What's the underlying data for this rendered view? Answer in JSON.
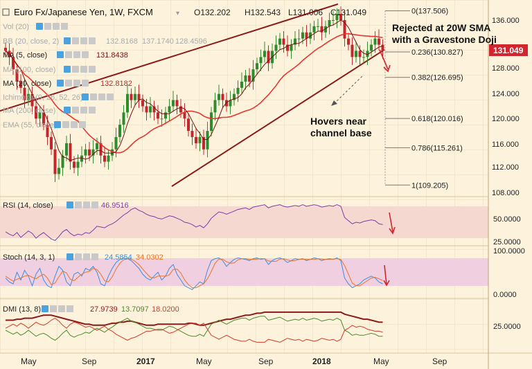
{
  "header": {
    "title": "Euro Fx/Japanese Yen, 1W, FXCM",
    "ohlc": [
      "O132.202",
      "H132.543",
      "L131.006",
      "C131.049"
    ]
  },
  "indicators": {
    "vol": "Vol (20)",
    "bb": {
      "label": "BB (20, close, 2)",
      "values": [
        "132.8168",
        "137.1740",
        "128.4596"
      ]
    },
    "ma5": {
      "label": "MA (5, close)",
      "value": "131.8438"
    },
    "ma100": "MA (100, close)",
    "ma20": {
      "label": "MA (20, close)",
      "value": "132.8182"
    },
    "ichimoku": "Ichimoku (9, 26, 52, 26)",
    "ma200": "MA (200, close)",
    "ema55": "EMA (55, close)"
  },
  "annotations": {
    "rejected_line1": "Rejected at 20W SMA",
    "rejected_line2": "with a Gravestone Doji",
    "hovers_line1": "Hovers near",
    "hovers_line2": "channel base",
    "price_tag": "131.049"
  },
  "fib_levels": [
    {
      "label": "0(137.506)",
      "value": 137.506
    },
    {
      "label": "0.236(130.827)",
      "value": 130.827
    },
    {
      "label": "0.382(126.695)",
      "value": 126.695
    },
    {
      "label": "0.618(120.016)",
      "value": 120.016
    },
    {
      "label": "0.786(115.261)",
      "value": 115.261
    },
    {
      "label": "1(109.205)",
      "value": 109.205
    }
  ],
  "price_axis": {
    "ticks": [
      "136.000",
      "132.000",
      "128.000",
      "124.000",
      "120.000",
      "116.000",
      "112.000",
      "108.000"
    ]
  },
  "x_axis": {
    "labels": [
      "May",
      "Sep",
      "2017",
      "May",
      "Sep",
      "2018",
      "May",
      "Sep"
    ]
  },
  "rsi": {
    "label": "RSI (14, close)",
    "value": "46.9516",
    "ticks": [
      "50.0000",
      "25.0000"
    ]
  },
  "stoch": {
    "label": "Stoch (14, 3, 1)",
    "k": "24.5854",
    "d": "34.0302",
    "ticks": [
      "100.0000",
      "0.0000"
    ]
  },
  "dmi": {
    "label": "DMI (13, 8)",
    "values": [
      "27.9739",
      "13.7097",
      "18.0200"
    ],
    "ticks": [
      "25.0000"
    ]
  },
  "chart_data": {
    "type": "candlestick",
    "title": "Euro Fx/Japanese Yen, 1W, FXCM",
    "y_range": [
      108,
      138
    ],
    "colors": {
      "up": "#2e8b2e",
      "down": "#c0282d",
      "sma20": "#e8352f",
      "sma5": "#7a1010",
      "channel": "#8b1a1a",
      "rsi": "#7b3aa7",
      "stoch_k": "#3b8ee0",
      "stoch_d": "#e8752a",
      "dmi_adx": "#8b1a1a",
      "dmi_plus": "#4a8a2a",
      "dmi_minus": "#d23b2b"
    },
    "channel_upper": [
      [
        0,
        121.0
      ],
      [
        125,
        138.6
      ]
    ],
    "channel_lower": [
      [
        71,
        109.0
      ],
      [
        150,
        131.2
      ]
    ],
    "closes": [
      131,
      130,
      128,
      126,
      125,
      123,
      124,
      122,
      120,
      121,
      119,
      117,
      115,
      111,
      112,
      114,
      116,
      113,
      112,
      113,
      114,
      115,
      114,
      115,
      116,
      114,
      113,
      114,
      115,
      117,
      119,
      121,
      124,
      123,
      124,
      123,
      122,
      121,
      122,
      121,
      120,
      120,
      121,
      122,
      123,
      122,
      121,
      120,
      118,
      117,
      116,
      117,
      115,
      118,
      121,
      123,
      124,
      123,
      122,
      123,
      124,
      125,
      126,
      127,
      126,
      128,
      129,
      130,
      131,
      129,
      131,
      132,
      133,
      132,
      131,
      132,
      133,
      133,
      134,
      133,
      134,
      135,
      135,
      134,
      135,
      136,
      136,
      137,
      136,
      133,
      132,
      130,
      131,
      130,
      130,
      131,
      132,
      133,
      132,
      131
    ],
    "rsi_values": [
      38,
      35,
      33,
      37,
      31,
      35,
      39,
      36,
      30,
      34,
      37,
      33,
      29,
      27,
      32,
      38,
      41,
      36,
      33,
      35,
      34,
      37,
      36,
      40,
      45,
      44,
      43,
      46,
      48,
      51,
      55,
      59,
      62,
      66,
      68,
      65,
      63,
      60,
      58,
      57,
      55,
      54,
      56,
      58,
      57,
      55,
      53,
      50,
      49,
      47,
      44,
      46,
      43,
      48,
      55,
      59,
      63,
      62,
      60,
      62,
      64,
      66,
      67,
      68,
      66,
      69,
      70,
      71,
      72,
      68,
      70,
      71,
      72,
      70,
      69,
      70,
      71,
      70,
      72,
      70,
      71,
      72,
      71,
      69,
      70,
      71,
      70,
      72,
      70,
      56,
      52,
      48,
      50,
      49,
      51,
      52,
      53,
      52,
      48,
      47
    ],
    "stoch_k": [
      40,
      30,
      25,
      55,
      35,
      60,
      45,
      20,
      50,
      65,
      35,
      20,
      15,
      45,
      70,
      60,
      30,
      20,
      50,
      55,
      45,
      65,
      60,
      70,
      55,
      25,
      20,
      45,
      65,
      80,
      88,
      92,
      90,
      85,
      75,
      65,
      50,
      40,
      35,
      45,
      55,
      35,
      45,
      65,
      75,
      50,
      35,
      20,
      15,
      10,
      20,
      30,
      25,
      60,
      85,
      90,
      92,
      85,
      70,
      80,
      88,
      92,
      90,
      88,
      85,
      90,
      92,
      88,
      90,
      75,
      85,
      90,
      92,
      88,
      80,
      85,
      90,
      88,
      90,
      85,
      88,
      92,
      90,
      85,
      88,
      90,
      88,
      92,
      85,
      40,
      25,
      15,
      20,
      25,
      35,
      40,
      45,
      40,
      30,
      25
    ],
    "stoch_d": [
      45,
      38,
      32,
      37,
      40,
      45,
      47,
      42,
      38,
      45,
      50,
      40,
      23,
      27,
      43,
      58,
      53,
      37,
      33,
      42,
      50,
      55,
      57,
      65,
      62,
      50,
      33,
      30,
      43,
      63,
      78,
      87,
      90,
      89,
      83,
      75,
      63,
      52,
      42,
      40,
      45,
      45,
      45,
      48,
      62,
      63,
      53,
      35,
      23,
      15,
      15,
      20,
      25,
      38,
      57,
      78,
      89,
      89,
      82,
      78,
      79,
      87,
      90,
      90,
      88,
      88,
      89,
      90,
      90,
      84,
      83,
      83,
      89,
      90,
      87,
      84,
      85,
      88,
      89,
      88,
      88,
      88,
      90,
      89,
      88,
      88,
      89,
      90,
      88,
      72,
      50,
      27,
      20,
      20,
      27,
      33,
      40,
      42,
      38,
      34
    ],
    "dmi_adx": [
      30,
      30,
      30,
      31,
      31,
      32,
      32,
      32,
      33,
      34,
      35,
      35,
      35,
      34,
      33,
      32,
      31,
      30,
      29,
      28,
      27,
      26,
      26,
      25,
      25,
      25,
      25,
      26,
      27,
      27,
      28,
      28,
      29,
      29,
      28,
      27,
      26,
      25,
      25,
      25,
      26,
      26,
      26,
      26,
      26,
      26,
      26,
      26,
      27,
      27,
      26,
      25,
      25,
      26,
      27,
      28,
      29,
      30,
      31,
      31,
      32,
      33,
      34,
      35,
      35,
      36,
      37,
      37,
      38,
      38,
      38,
      38,
      38,
      38,
      38,
      38,
      38,
      38,
      38,
      38,
      38,
      38,
      38,
      38,
      38,
      38,
      38,
      38,
      38,
      36,
      35,
      34,
      33,
      32,
      31,
      31,
      30,
      29,
      28,
      28
    ],
    "dmi_plus": [
      20,
      18,
      16,
      18,
      15,
      17,
      20,
      17,
      14,
      16,
      17,
      15,
      12,
      10,
      13,
      17,
      20,
      15,
      13,
      15,
      16,
      18,
      17,
      20,
      22,
      20,
      18,
      21,
      23,
      26,
      28,
      30,
      32,
      29,
      28,
      26,
      24,
      22,
      22,
      21,
      20,
      20,
      22,
      24,
      23,
      21,
      19,
      17,
      15,
      14,
      14,
      16,
      14,
      20,
      26,
      28,
      30,
      28,
      26,
      28,
      30,
      31,
      32,
      32,
      30,
      32,
      33,
      34,
      34,
      30,
      31,
      32,
      33,
      31,
      29,
      30,
      31,
      30,
      32,
      30,
      31,
      32,
      31,
      29,
      30,
      31,
      30,
      32,
      30,
      20,
      18,
      15,
      16,
      15,
      15,
      16,
      17,
      16,
      14,
      14
    ],
    "dmi_minus": [
      22,
      24,
      26,
      24,
      27,
      25,
      22,
      25,
      28,
      26,
      25,
      27,
      30,
      32,
      29,
      25,
      22,
      26,
      28,
      27,
      25,
      23,
      24,
      22,
      20,
      22,
      24,
      21,
      19,
      16,
      14,
      12,
      10,
      12,
      13,
      15,
      17,
      19,
      19,
      20,
      21,
      21,
      19,
      17,
      18,
      20,
      22,
      24,
      26,
      27,
      27,
      25,
      27,
      21,
      15,
      13,
      11,
      13,
      15,
      13,
      11,
      10,
      9,
      9,
      11,
      9,
      8,
      8,
      8,
      11,
      10,
      9,
      8,
      10,
      12,
      11,
      10,
      11,
      9,
      11,
      10,
      9,
      10,
      12,
      11,
      10,
      11,
      9,
      11,
      20,
      22,
      25,
      23,
      24,
      23,
      21,
      20,
      19,
      19,
      18
    ]
  }
}
